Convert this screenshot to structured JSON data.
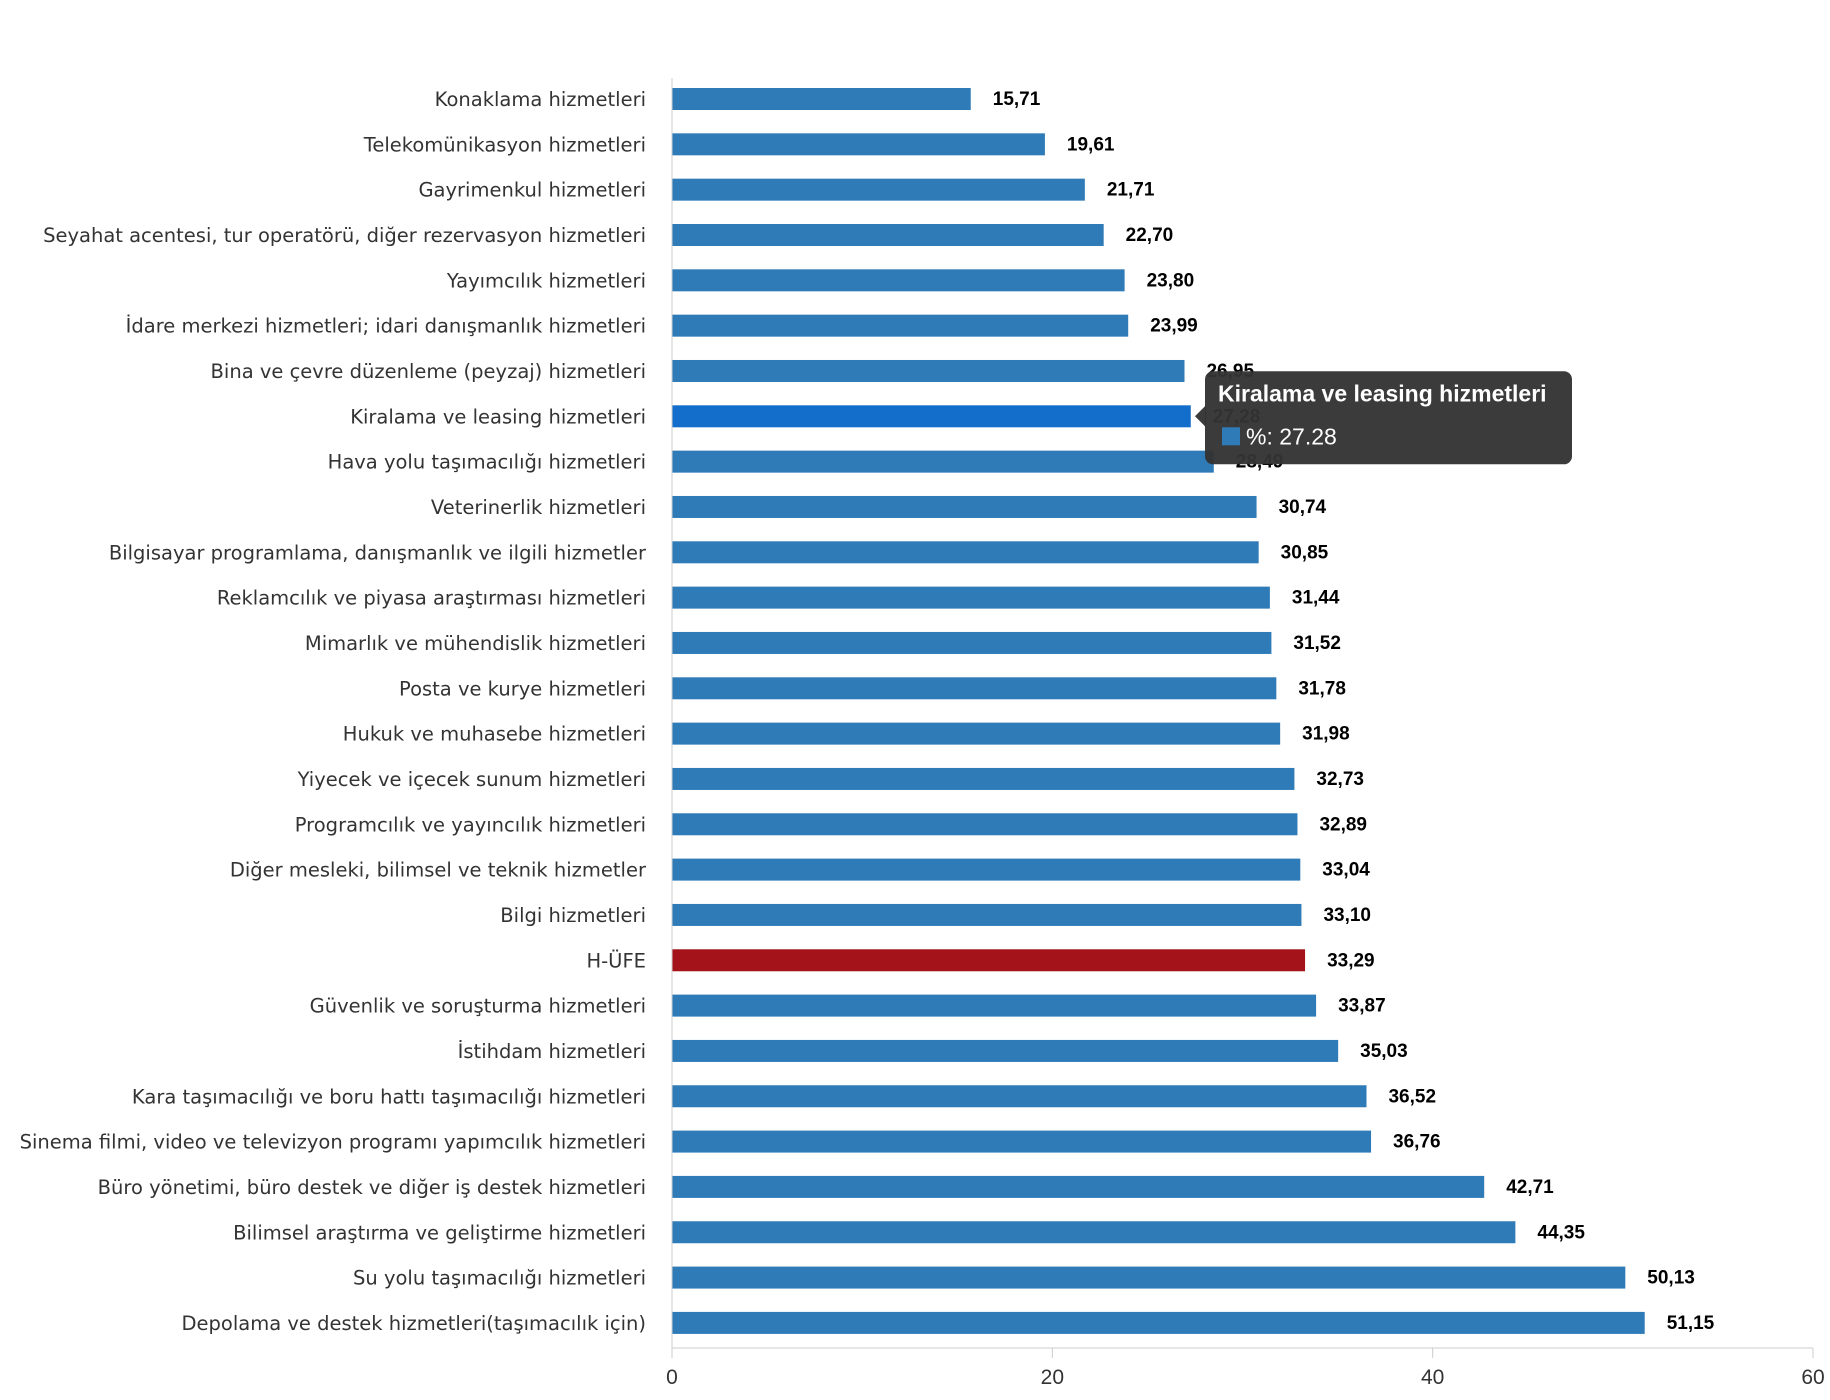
{
  "chart_data": {
    "type": "bar",
    "orientation": "horizontal",
    "categories": [
      "Konaklama hizmetleri",
      "Telekomünikasyon hizmetleri",
      "Gayrimenkul hizmetleri",
      "Seyahat acentesi, tur operatörü, diğer rezervasyon hizmetleri",
      "Yayımcılık hizmetleri",
      "İdare merkezi hizmetleri; idari danışmanlık hizmetleri",
      "Bina ve çevre düzenleme (peyzaj) hizmetleri",
      "Kiralama ve leasing hizmetleri",
      "Hava yolu taşımacılığı hizmetleri",
      "Veterinerlik hizmetleri",
      "Bilgisayar programlama, danışmanlık ve ilgili hizmetler",
      "Reklamcılık ve piyasa araştırması hizmetleri",
      "Mimarlık ve mühendislik hizmetleri",
      "Posta ve kurye hizmetleri",
      "Hukuk ve muhasebe hizmetleri",
      "Yiyecek ve içecek sunum hizmetleri",
      "Programcılık ve yayıncılık hizmetleri",
      "Diğer mesleki, bilimsel ve teknik hizmetler",
      "Bilgi hizmetleri",
      "H-ÜFE",
      "Güvenlik ve soruşturma hizmetleri",
      "İstihdam hizmetleri",
      "Kara taşımacılığı ve boru hattı taşımacılığı hizmetleri",
      "Sinema filmi, video ve televizyon programı yapımcılık hizmetleri",
      "Büro yönetimi, büro destek ve diğer iş destek hizmetleri",
      "Bilimsel araştırma ve geliştirme hizmetleri",
      "Su yolu taşımacılığı hizmetleri",
      "Depolama ve destek hizmetleri(taşımacılık için)"
    ],
    "values": [
      15.71,
      19.61,
      21.71,
      22.7,
      23.8,
      23.99,
      26.95,
      27.28,
      28.49,
      30.74,
      30.85,
      31.44,
      31.52,
      31.78,
      31.98,
      32.73,
      32.89,
      33.04,
      33.1,
      33.29,
      33.87,
      35.03,
      36.52,
      36.76,
      42.71,
      44.35,
      50.13,
      51.15
    ],
    "value_labels": [
      "15,71",
      "19,61",
      "21,71",
      "22,70",
      "23,80",
      "23,99",
      "26,95",
      "27,28",
      "28,49",
      "30,74",
      "30,85",
      "31,44",
      "31,52",
      "31,78",
      "31,98",
      "32,73",
      "32,89",
      "33,04",
      "33,10",
      "33,29",
      "33,87",
      "35,03",
      "36,52",
      "36,76",
      "42,71",
      "44,35",
      "50,13",
      "51,15"
    ],
    "title": "",
    "xlabel": "",
    "ylabel": "",
    "xlim": [
      0,
      60
    ],
    "xticks": [
      0,
      20,
      40,
      60
    ],
    "grid": false,
    "colors": {
      "bar": "#2f7bb8",
      "hover_bar": "#136ecb",
      "highlight_bar": "#a5131a",
      "highlight_category": "H-ÜFE"
    },
    "tooltip": {
      "category": "Kiralama ve leasing hizmetleri",
      "title": "Kiralama ve leasing hizmetleri",
      "value_text": "%: 27.28",
      "background": "#333333"
    }
  }
}
